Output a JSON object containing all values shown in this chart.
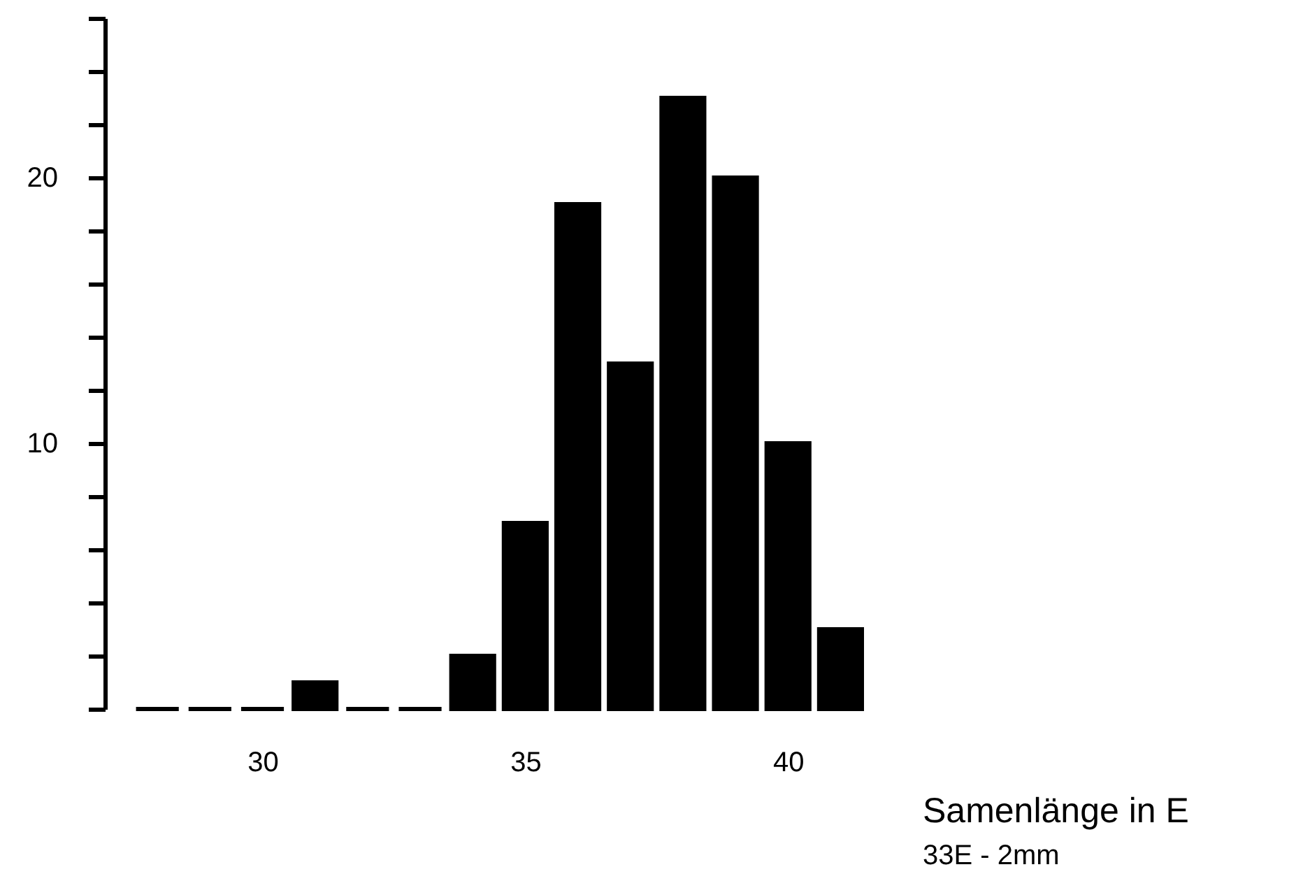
{
  "chart_data": {
    "type": "histogram",
    "xlabel": "Samenlänge in E",
    "annotations": [
      "33E - 2mm"
    ],
    "bins": [
      27.5,
      28.5,
      29.5,
      30.5,
      31.5,
      32.5,
      33.5,
      34.5,
      35.5,
      36.5,
      37.5,
      38.5,
      39.5,
      40.5,
      41.5
    ],
    "values": [
      0,
      0,
      0,
      1,
      0,
      0,
      2,
      7,
      19,
      13,
      23,
      20,
      10,
      3
    ],
    "color": "#000000",
    "xlim": [
      27,
      41.5
    ],
    "xticks": [
      30,
      35,
      40
    ],
    "ylim": [
      0,
      26
    ],
    "yticks": [
      {
        "value": 0,
        "label": null
      },
      {
        "value": 2,
        "label": null
      },
      {
        "value": 4,
        "label": null
      },
      {
        "value": 6,
        "label": null
      },
      {
        "value": 8,
        "label": null
      },
      10,
      {
        "value": 12,
        "label": null
      },
      {
        "value": 14,
        "label": null
      },
      {
        "value": 16,
        "label": null
      },
      {
        "value": 18,
        "label": null
      },
      20,
      {
        "value": 22,
        "label": null
      },
      {
        "value": 24,
        "label": null
      },
      {
        "value": 26,
        "label": null
      }
    ]
  }
}
